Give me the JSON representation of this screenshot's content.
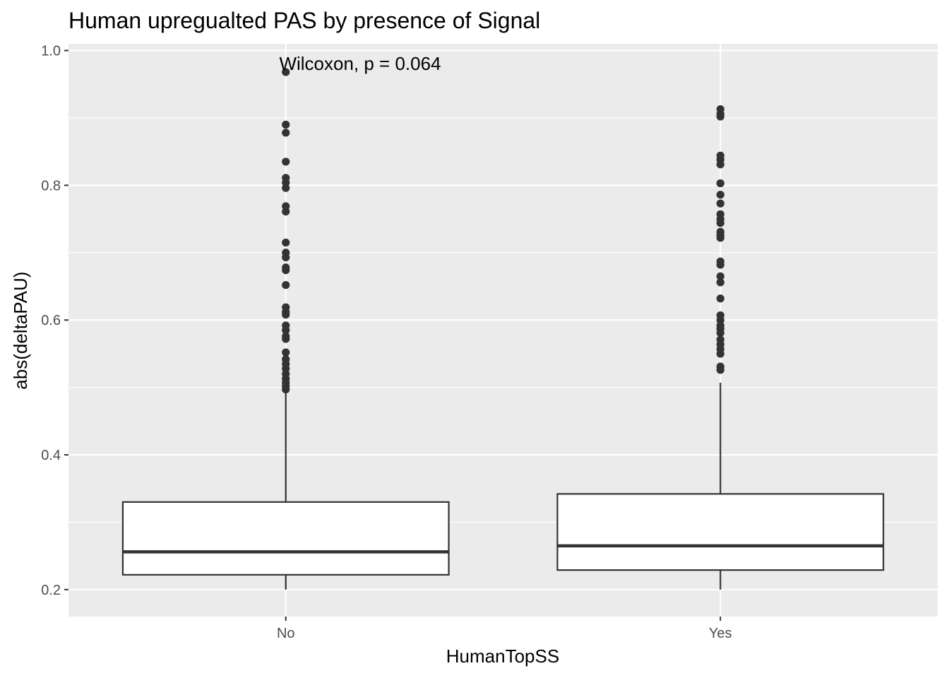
{
  "chart_data": {
    "type": "box",
    "title": "Human upregualted PAS by presence of Signal",
    "xlabel": "HumanTopSS",
    "ylabel": "abs(deltaPAU)",
    "categories": [
      "No",
      "Yes"
    ],
    "ylim": [
      0.16,
      1.01
    ],
    "yticks": [
      0.2,
      0.4,
      0.6,
      0.8,
      1.0
    ],
    "ytick_labels": [
      "0.2",
      "0.4",
      "0.6",
      "0.8",
      "1.0"
    ],
    "annotation": "Wilcoxon, p = 0.064",
    "grid": true,
    "colors": {
      "panel": "#EBEBEB",
      "grid": "#FFFFFF",
      "box_fill": "#FFFFFF",
      "box_line": "#333333",
      "outlier": "#333333",
      "tick_text": "#4D4D4D"
    },
    "boxes": [
      {
        "category": "No",
        "lower_whisker": 0.2,
        "q1": 0.222,
        "median": 0.256,
        "q3": 0.33,
        "upper_whisker": 0.495,
        "outliers": [
          0.968,
          0.89,
          0.878,
          0.835,
          0.811,
          0.804,
          0.796,
          0.769,
          0.761,
          0.715,
          0.7,
          0.693,
          0.678,
          0.674,
          0.652,
          0.619,
          0.612,
          0.608,
          0.592,
          0.585,
          0.576,
          0.572,
          0.552,
          0.542,
          0.535,
          0.528,
          0.52,
          0.513,
          0.507,
          0.502,
          0.497
        ]
      },
      {
        "category": "Yes",
        "lower_whisker": 0.2,
        "q1": 0.229,
        "median": 0.265,
        "q3": 0.342,
        "upper_whisker": 0.507,
        "outliers": [
          0.913,
          0.906,
          0.902,
          0.844,
          0.838,
          0.831,
          0.803,
          0.786,
          0.773,
          0.757,
          0.75,
          0.744,
          0.731,
          0.726,
          0.722,
          0.687,
          0.682,
          0.665,
          0.656,
          0.632,
          0.607,
          0.6,
          0.592,
          0.587,
          0.581,
          0.571,
          0.564,
          0.557,
          0.55,
          0.531,
          0.526
        ]
      }
    ]
  }
}
